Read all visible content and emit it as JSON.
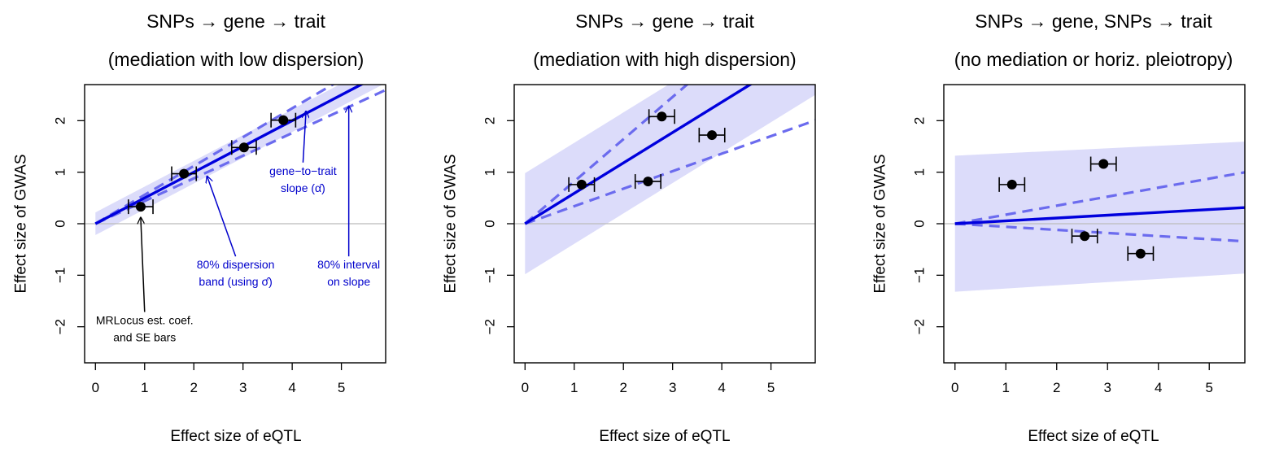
{
  "colors": {
    "fit_line": "#0000dd",
    "interval_dash": "#6b6bee",
    "band_fill": "#dcdcfa",
    "zero_line": "#bbbbbb",
    "point": "#000000",
    "annot_blue": "#0000cc",
    "annot_black": "#000000"
  },
  "chart_data": [
    {
      "type": "scatter",
      "title": "SNPs → gene → trait",
      "subtitle": "(mediation with low dispersion)",
      "xlabel": "Effect size of eQTL",
      "ylabel": "Effect size of GWAS",
      "xlim": [
        -0.22,
        5.9
      ],
      "ylim": [
        -2.7,
        2.7
      ],
      "xticks": [
        0,
        1,
        2,
        3,
        4,
        5
      ],
      "yticks": [
        -2,
        -1,
        0,
        1,
        2
      ],
      "grid": false,
      "points": [
        {
          "x": 0.92,
          "y": 0.33,
          "xerr": 0.25
        },
        {
          "x": 1.8,
          "y": 0.97,
          "xerr": 0.25
        },
        {
          "x": 3.02,
          "y": 1.48,
          "xerr": 0.25
        },
        {
          "x": 3.82,
          "y": 2.01,
          "xerr": 0.25
        }
      ],
      "slope": 0.5,
      "slope_interval": [
        0.44,
        0.56
      ],
      "dispersion_half_width": 0.22,
      "annotations": [
        {
          "lines": [
            "gene−to−trait",
            "slope (α̂)"
          ],
          "color": "blue",
          "text_at": [
            4.22,
            0.95
          ],
          "arrow_to": [
            4.28,
            2.18
          ]
        },
        {
          "lines": [
            "80% dispersion",
            "band (using σ̂)"
          ],
          "color": "blue",
          "text_at": [
            2.85,
            -0.87
          ],
          "arrow_to": [
            2.27,
            0.92
          ]
        },
        {
          "lines": [
            "80% interval",
            "on slope"
          ],
          "color": "blue",
          "text_at": [
            5.15,
            -0.87
          ],
          "arrow_to": [
            5.15,
            2.28
          ]
        },
        {
          "lines": [
            "MRLocus est. coef.",
            "and SE bars"
          ],
          "color": "black",
          "text_at": [
            1.0,
            -1.95
          ],
          "arrow_to": [
            0.92,
            0.12
          ]
        }
      ]
    },
    {
      "type": "scatter",
      "title": "SNPs → gene → trait",
      "subtitle": "(mediation with high dispersion)",
      "xlabel": "Effect size of eQTL",
      "ylabel": "Effect size of GWAS",
      "xlim": [
        -0.22,
        5.9
      ],
      "ylim": [
        -2.7,
        2.7
      ],
      "xticks": [
        0,
        1,
        2,
        3,
        4,
        5
      ],
      "yticks": [
        -2,
        -1,
        0,
        1,
        2
      ],
      "grid": false,
      "points": [
        {
          "x": 1.15,
          "y": 0.76,
          "xerr": 0.26
        },
        {
          "x": 2.78,
          "y": 2.08,
          "xerr": 0.26
        },
        {
          "x": 2.5,
          "y": 0.82,
          "xerr": 0.26
        },
        {
          "x": 3.8,
          "y": 1.72,
          "xerr": 0.26
        }
      ],
      "slope": 0.59,
      "slope_interval": [
        0.34,
        0.82
      ],
      "dispersion_half_width": 0.98,
      "annotations": []
    },
    {
      "type": "scatter",
      "title": "SNPs → gene, SNPs → trait",
      "subtitle": "(no mediation or horiz. pleiotropy)",
      "xlabel": "Effect size of eQTL",
      "ylabel": "Effect size of GWAS",
      "xlim": [
        -0.22,
        5.7
      ],
      "ylim": [
        -2.7,
        2.7
      ],
      "xticks": [
        0,
        1,
        2,
        3,
        4,
        5
      ],
      "yticks": [
        -2,
        -1,
        0,
        1,
        2
      ],
      "grid": false,
      "points": [
        {
          "x": 1.12,
          "y": 0.76,
          "xerr": 0.25
        },
        {
          "x": 2.92,
          "y": 1.16,
          "xerr": 0.25
        },
        {
          "x": 2.55,
          "y": -0.24,
          "xerr": 0.25
        },
        {
          "x": 3.65,
          "y": -0.58,
          "xerr": 0.25
        }
      ],
      "slope": 0.055,
      "slope_interval": [
        -0.06,
        0.175
      ],
      "dispersion_half_width": 1.32,
      "dispersion_half_width_end": 1.28,
      "annotations": []
    }
  ]
}
